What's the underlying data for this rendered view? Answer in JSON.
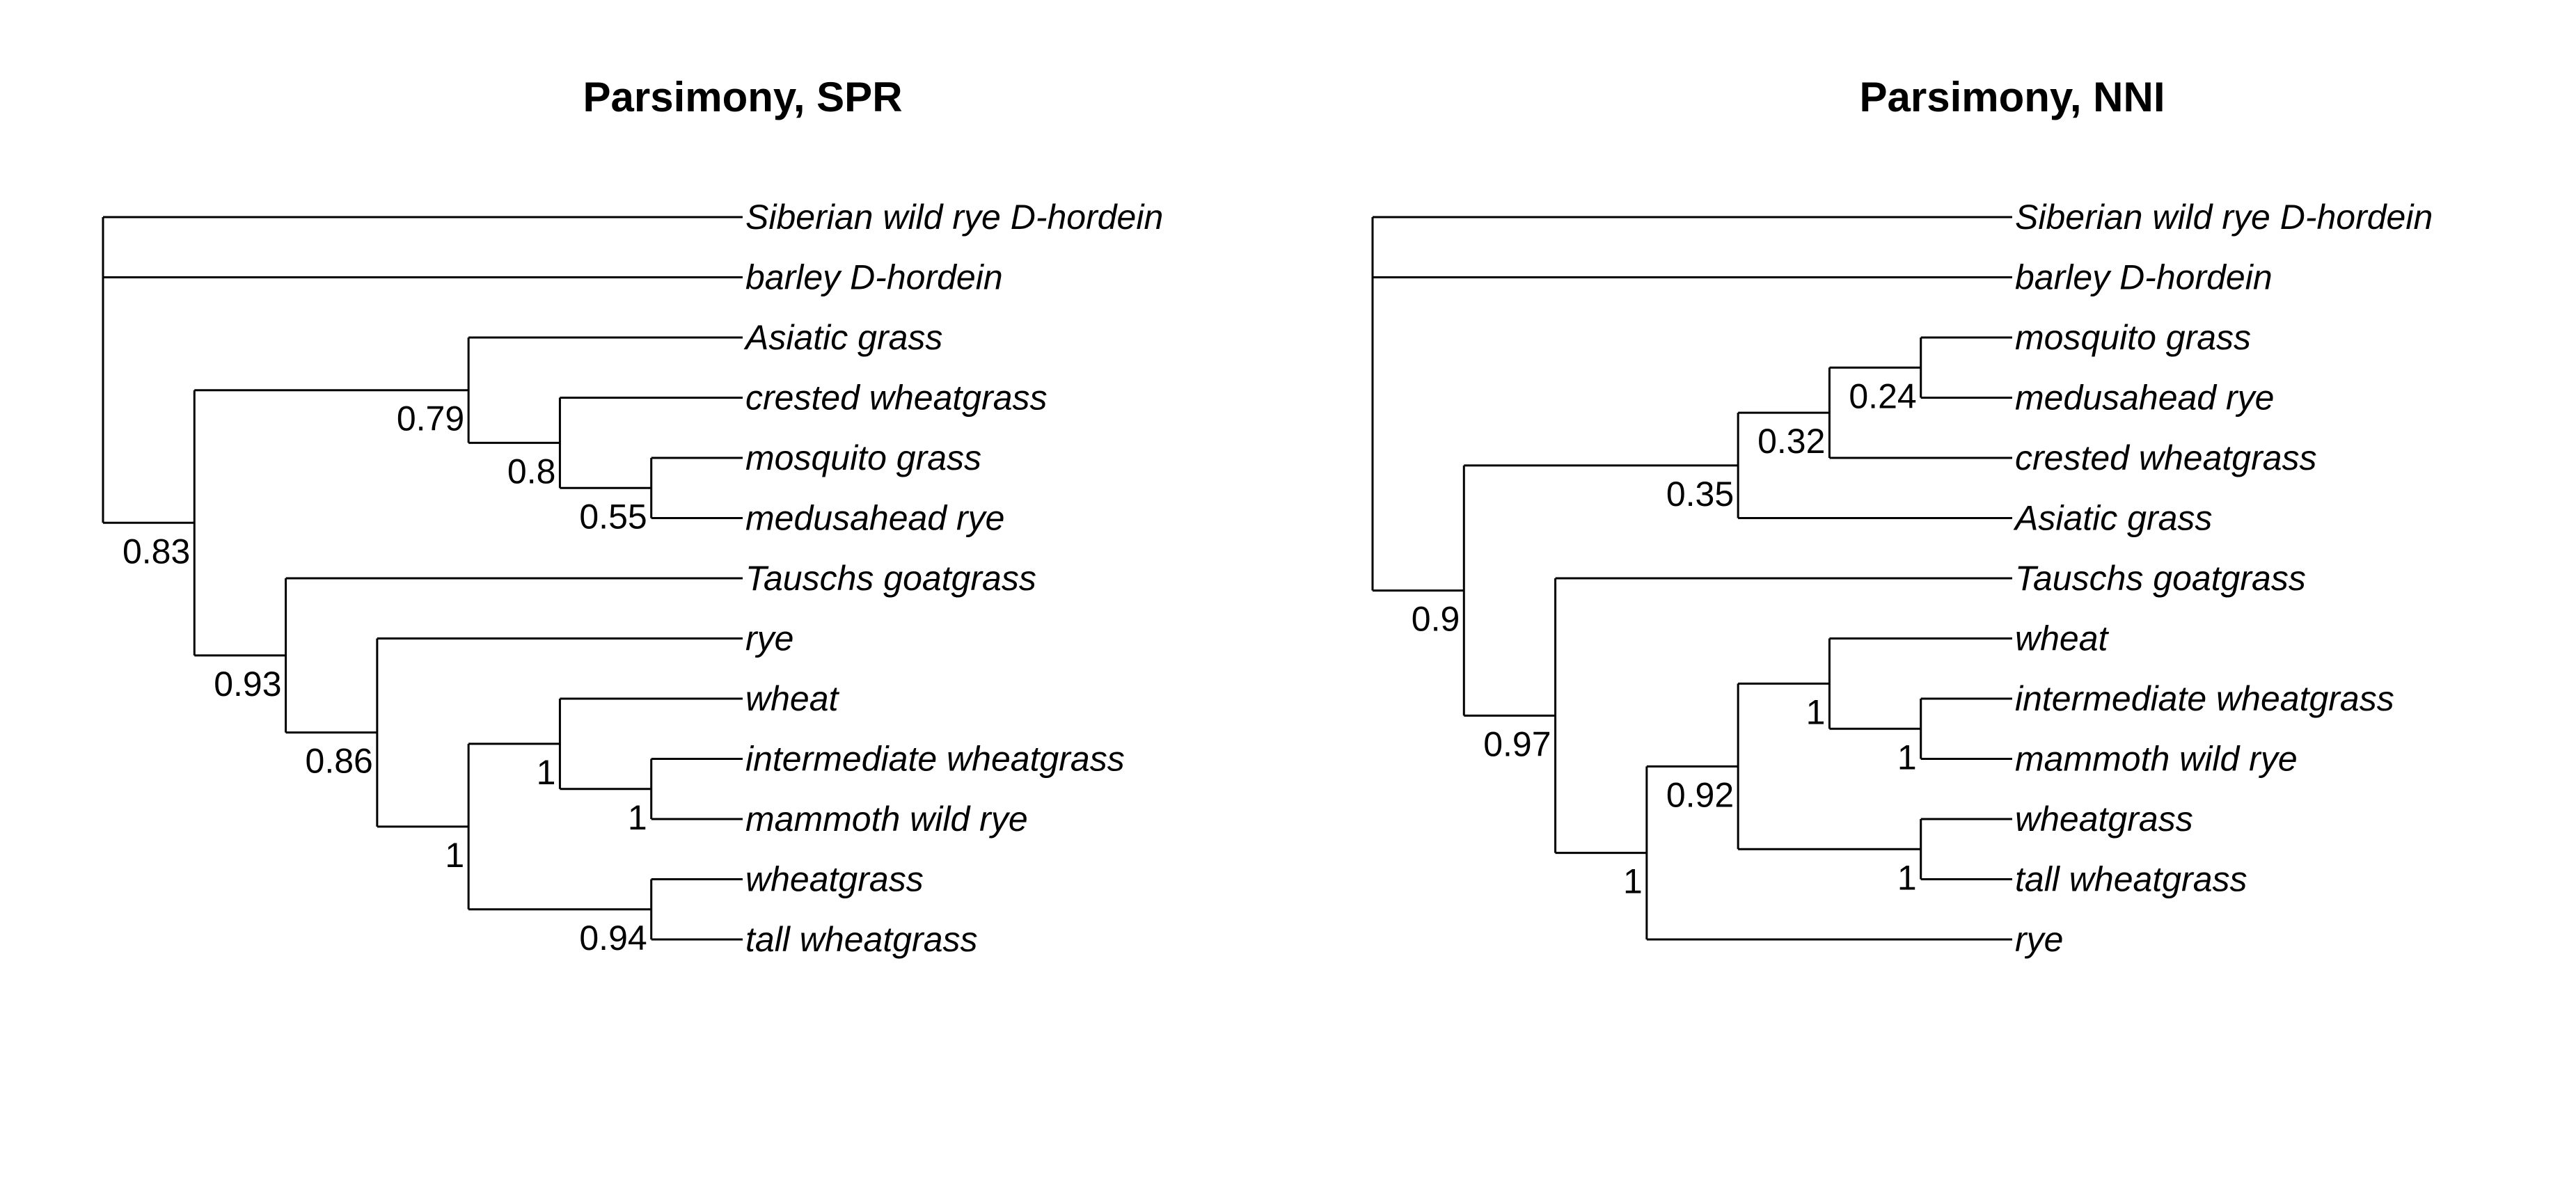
{
  "figure": {
    "panels": [
      {
        "title": "Parsimony, SPR",
        "tree": {
          "children": [
            {
              "label": "Siberian wild rye D-hordein"
            },
            {
              "label": "barley D-hordein"
            },
            {
              "support": "0.83",
              "children": [
                {
                  "support": "0.79",
                  "children": [
                    {
                      "label": "Asiatic grass"
                    },
                    {
                      "support": "0.8",
                      "children": [
                        {
                          "label": "crested wheatgrass"
                        },
                        {
                          "support": "0.55",
                          "children": [
                            {
                              "label": "mosquito grass"
                            },
                            {
                              "label": "medusahead rye"
                            }
                          ]
                        }
                      ]
                    }
                  ]
                },
                {
                  "support": "0.93",
                  "children": [
                    {
                      "label": "Tauschs goatgrass"
                    },
                    {
                      "support": "0.86",
                      "children": [
                        {
                          "label": "rye"
                        },
                        {
                          "support": "1",
                          "children": [
                            {
                              "support": "1",
                              "children": [
                                {
                                  "label": "wheat"
                                },
                                {
                                  "support": "1",
                                  "children": [
                                    {
                                      "label": "intermediate wheatgrass"
                                    },
                                    {
                                      "label": "mammoth wild rye"
                                    }
                                  ]
                                }
                              ]
                            },
                            {
                              "support": "0.94",
                              "children": [
                                {
                                  "label": "wheatgrass"
                                },
                                {
                                  "label": "tall wheatgrass"
                                }
                              ]
                            }
                          ]
                        }
                      ]
                    }
                  ]
                }
              ]
            }
          ]
        }
      },
      {
        "title": "Parsimony, NNI",
        "tree": {
          "children": [
            {
              "label": "Siberian wild rye D-hordein"
            },
            {
              "label": "barley D-hordein"
            },
            {
              "support": "0.9",
              "children": [
                {
                  "support": "0.35",
                  "children": [
                    {
                      "support": "0.32",
                      "children": [
                        {
                          "support": "0.24",
                          "children": [
                            {
                              "label": "mosquito grass"
                            },
                            {
                              "label": "medusahead rye"
                            }
                          ]
                        },
                        {
                          "label": "crested wheatgrass"
                        }
                      ]
                    },
                    {
                      "label": "Asiatic grass"
                    }
                  ]
                },
                {
                  "support": "0.97",
                  "children": [
                    {
                      "label": "Tauschs goatgrass"
                    },
                    {
                      "support": "1",
                      "children": [
                        {
                          "support": "0.92",
                          "children": [
                            {
                              "support": "1",
                              "children": [
                                {
                                  "label": "wheat"
                                },
                                {
                                  "support": "1",
                                  "children": [
                                    {
                                      "label": "intermediate wheatgrass"
                                    },
                                    {
                                      "label": "mammoth wild rye"
                                    }
                                  ]
                                }
                              ]
                            },
                            {
                              "support": "1",
                              "children": [
                                {
                                  "label": "wheatgrass"
                                },
                                {
                                  "label": "tall wheatgrass"
                                }
                              ]
                            }
                          ]
                        },
                        {
                          "label": "rye"
                        }
                      ]
                    }
                  ]
                }
              ]
            }
          ]
        }
      }
    ]
  }
}
